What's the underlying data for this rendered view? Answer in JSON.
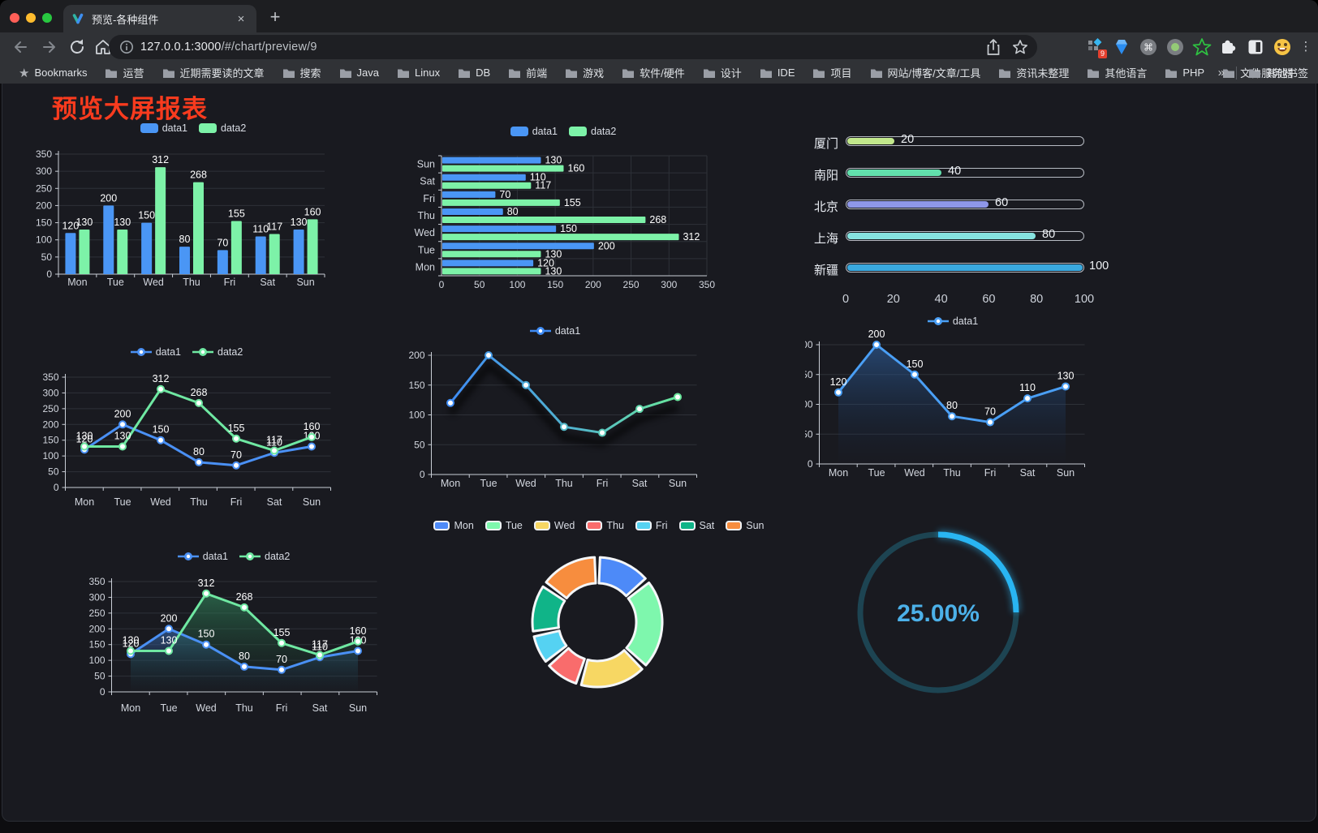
{
  "browser": {
    "tab": {
      "title": "预览-各种组件",
      "close_glyph": "×",
      "new_tab_glyph": "+"
    },
    "url": {
      "host": "127.0.0.1:3000",
      "path": "/#/chart/preview/9"
    },
    "extensions_badge": "9",
    "menu_glyph": "⋮",
    "bookmarks_bar": {
      "bookmarks_label": "Bookmarks",
      "star_glyph": "★",
      "items": [
        "运营",
        "近期需要读的文章",
        "搜索",
        "Java",
        "Linux",
        "DB",
        "前端",
        "游戏",
        "软件/硬件",
        "设计",
        "IDE",
        "项目",
        "网站/博客/文章/工具",
        "资讯未整理",
        "其他语言",
        "PHP",
        "文件服务器"
      ],
      "overflow_glyph": "»",
      "other_bookmarks_label": "其他书签"
    }
  },
  "page": {
    "title": "预览大屏报表",
    "title_color": "#f93b1e"
  },
  "chart_data": [
    {
      "id": "c1",
      "type": "bar",
      "legend_position": "top",
      "grid": true,
      "categories": [
        "Mon",
        "Tue",
        "Wed",
        "Thu",
        "Fri",
        "Sat",
        "Sun"
      ],
      "series": [
        {
          "name": "data1",
          "color": "#4a96f5",
          "values": [
            120,
            200,
            150,
            80,
            70,
            110,
            130
          ]
        },
        {
          "name": "data2",
          "color": "#7df2a8",
          "values": [
            130,
            130,
            312,
            268,
            155,
            117,
            160
          ]
        }
      ],
      "ylim": [
        0,
        350
      ],
      "ytick_step": 50
    },
    {
      "id": "c2",
      "type": "bar",
      "orientation": "horizontal",
      "legend_position": "top",
      "grid": true,
      "categories": [
        "Mon",
        "Tue",
        "Wed",
        "Thu",
        "Fri",
        "Sat",
        "Sun"
      ],
      "series": [
        {
          "name": "data1",
          "color": "#4a96f5",
          "values": [
            120,
            200,
            150,
            80,
            70,
            110,
            130
          ]
        },
        {
          "name": "data2",
          "color": "#7df2a8",
          "values": [
            130,
            130,
            312,
            268,
            155,
            117,
            160
          ]
        }
      ],
      "xlim": [
        0,
        350
      ],
      "xtick_step": 50
    },
    {
      "id": "c3",
      "type": "bar",
      "variant": "progress-list",
      "rows": [
        {
          "label": "厦门",
          "value": 20,
          "color": "#c2e88c"
        },
        {
          "label": "南阳",
          "value": 40,
          "color": "#62e0ad"
        },
        {
          "label": "北京",
          "value": 60,
          "color": "#8e97e8"
        },
        {
          "label": "上海",
          "value": 80,
          "color": "#86e3e0"
        },
        {
          "label": "新疆",
          "value": 100,
          "color": "#3aa9df"
        }
      ],
      "xlim": [
        0,
        100
      ],
      "xticks": [
        0,
        20,
        40,
        60,
        80,
        100
      ]
    },
    {
      "id": "c4",
      "type": "line",
      "legend_position": "top",
      "grid": true,
      "point_labels": true,
      "categories": [
        "Mon",
        "Tue",
        "Wed",
        "Thu",
        "Fri",
        "Sat",
        "Sun"
      ],
      "series": [
        {
          "name": "data1",
          "color": "#4a90f4",
          "values": [
            120,
            200,
            150,
            80,
            70,
            110,
            130
          ]
        },
        {
          "name": "data2",
          "color": "#6fe8a2",
          "values": [
            130,
            130,
            312,
            268,
            155,
            117,
            160
          ]
        }
      ],
      "ylim": [
        0,
        350
      ],
      "ytick_step": 50
    },
    {
      "id": "c5",
      "type": "line",
      "variant": "gradient-shadow",
      "legend_position": "top",
      "grid": true,
      "point_labels": false,
      "categories": [
        "Mon",
        "Tue",
        "Wed",
        "Thu",
        "Fri",
        "Sat",
        "Sun"
      ],
      "series": [
        {
          "name": "data1",
          "gradient": [
            "#3f8cf5",
            "#69e79c"
          ],
          "values": [
            120,
            200,
            150,
            80,
            70,
            110,
            130
          ]
        }
      ],
      "ylim": [
        0,
        200
      ],
      "ytick_step": 50
    },
    {
      "id": "c6",
      "type": "area",
      "legend_position": "top",
      "grid": true,
      "point_labels": true,
      "categories": [
        "Mon",
        "Tue",
        "Wed",
        "Thu",
        "Fri",
        "Sat",
        "Sun"
      ],
      "series": [
        {
          "name": "data1",
          "color": "#4a9ff5",
          "fill": [
            "rgba(48,100,165,0.6)",
            "rgba(20,40,70,0.02)"
          ],
          "values": [
            120,
            200,
            150,
            80,
            70,
            110,
            130
          ]
        }
      ],
      "ylim": [
        0,
        200
      ],
      "ytick_step": 50
    },
    {
      "id": "c7",
      "type": "area",
      "legend_position": "top",
      "grid": true,
      "point_labels": true,
      "categories": [
        "Mon",
        "Tue",
        "Wed",
        "Thu",
        "Fri",
        "Sat",
        "Sun"
      ],
      "series": [
        {
          "name": "data1",
          "color": "#4a90f4",
          "fill": [
            "rgba(58,110,180,0.6)",
            "rgba(25,45,80,0.02)"
          ],
          "values": [
            120,
            200,
            150,
            80,
            70,
            110,
            130
          ]
        },
        {
          "name": "data2",
          "color": "#6fe8a2",
          "fill": [
            "rgba(52,140,96,0.6)",
            "rgba(20,60,40,0.02)"
          ],
          "values": [
            130,
            130,
            312,
            268,
            155,
            117,
            160
          ]
        }
      ],
      "ylim": [
        0,
        350
      ],
      "ytick_step": 50
    },
    {
      "id": "c8",
      "type": "pie",
      "variant": "donut",
      "legend_position": "top",
      "categories": [
        "Mon",
        "Tue",
        "Wed",
        "Thu",
        "Fri",
        "Sat",
        "Sun"
      ],
      "values": [
        120,
        200,
        150,
        80,
        70,
        110,
        130
      ],
      "colors": [
        "#4d8af8",
        "#7ef7ad",
        "#f7d763",
        "#f96c6c",
        "#55d2f2",
        "#10b488",
        "#f78d3e"
      ]
    },
    {
      "id": "c9",
      "type": "gauge",
      "percent": 25,
      "label": "25.00%",
      "color": "#29b5f2",
      "track_color": "#1d4452",
      "label_color": "#4cb1e9"
    }
  ]
}
